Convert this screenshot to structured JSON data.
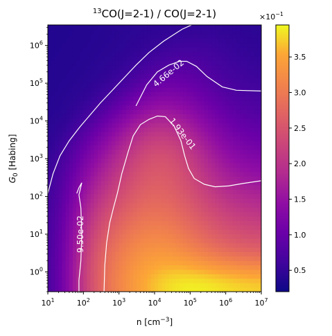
{
  "chart_data": {
    "type": "heatmap",
    "title_main": "CO(J=2-1) / CO(J=2-1)",
    "title_superscript": "13",
    "xlabel": "n [cm",
    "xlabel_exp": "−3",
    "xlabel_close": "]",
    "ylabel": "G",
    "ylabel_sub": "0",
    "ylabel_rest": " [Habing]",
    "x_scale": "log",
    "y_scale": "log",
    "xlim": [
      10,
      10000000
    ],
    "ylim": [
      0.3,
      3500000
    ],
    "x_ticks": [
      {
        "value": 10,
        "base": "10",
        "exp": "1"
      },
      {
        "value": 100,
        "base": "10",
        "exp": "2"
      },
      {
        "value": 1000,
        "base": "10",
        "exp": "3"
      },
      {
        "value": 10000,
        "base": "10",
        "exp": "4"
      },
      {
        "value": 100000,
        "base": "10",
        "exp": "5"
      },
      {
        "value": 1000000,
        "base": "10",
        "exp": "6"
      },
      {
        "value": 10000000,
        "base": "10",
        "exp": "7"
      }
    ],
    "y_ticks": [
      {
        "value": 1,
        "base": "10",
        "exp": "0"
      },
      {
        "value": 10,
        "base": "10",
        "exp": "1"
      },
      {
        "value": 100,
        "base": "10",
        "exp": "2"
      },
      {
        "value": 1000,
        "base": "10",
        "exp": "3"
      },
      {
        "value": 10000,
        "base": "10",
        "exp": "4"
      },
      {
        "value": 100000,
        "base": "10",
        "exp": "5"
      },
      {
        "value": 1000000,
        "base": "10",
        "exp": "6"
      }
    ],
    "colormap": "plasma",
    "colorbar": {
      "range": [
        0.2,
        3.95
      ],
      "ticks": [
        "0.5",
        "1.0",
        "1.5",
        "2.0",
        "2.5",
        "3.0",
        "3.5"
      ],
      "tick_values": [
        0.5,
        1.0,
        1.5,
        2.0,
        2.5,
        3.0,
        3.5
      ],
      "offset_base": "×10",
      "offset_exp": "−1"
    },
    "contours": [
      {
        "label": "4.66e-02",
        "points": [
          [
            10,
            120
          ],
          [
            14,
            400
          ],
          [
            22,
            1200
          ],
          [
            40,
            3000
          ],
          [
            80,
            7000
          ],
          [
            150,
            14000
          ],
          [
            300,
            30000
          ],
          [
            700,
            70000
          ],
          [
            1500,
            150000
          ],
          [
            3000,
            300000
          ],
          [
            7000,
            650000
          ],
          [
            18000,
            1300000
          ],
          [
            60000,
            2700000
          ],
          [
            110000,
            3500000
          ]
        ]
      },
      {
        "label": "4.66e-02",
        "points": [
          [
            3000,
            25000
          ],
          [
            6000,
            90000
          ],
          [
            12000,
            200000
          ],
          [
            25000,
            300000
          ],
          [
            50000,
            380000
          ],
          [
            80000,
            380000
          ],
          [
            150000,
            280000
          ],
          [
            300000,
            150000
          ],
          [
            800000,
            80000
          ],
          [
            2000000,
            65000
          ],
          [
            10000000,
            62000
          ]
        ]
      },
      {
        "label": "9.50e-02",
        "points": [
          [
            65,
            120
          ],
          [
            75,
            170
          ],
          [
            90,
            230
          ],
          [
            75,
            110
          ],
          [
            85,
            50
          ],
          [
            90,
            10
          ],
          [
            85,
            2
          ],
          [
            75,
            0.6
          ],
          [
            75,
            0.3
          ]
        ]
      },
      {
        "label": "1.93e-01",
        "points": [
          [
            380,
            0.3
          ],
          [
            400,
            1.5
          ],
          [
            450,
            6
          ],
          [
            550,
            20
          ],
          [
            700,
            50
          ],
          [
            900,
            120
          ],
          [
            1200,
            400
          ],
          [
            1800,
            1500
          ],
          [
            2500,
            4000
          ],
          [
            4000,
            8000
          ],
          [
            7000,
            11000
          ],
          [
            12000,
            13500
          ],
          [
            20000,
            13000
          ],
          [
            35000,
            7500
          ],
          [
            55000,
            3000
          ],
          [
            70000,
            1200
          ],
          [
            90000,
            550
          ],
          [
            130000,
            300
          ],
          [
            250000,
            210
          ],
          [
            500000,
            180
          ],
          [
            1200000,
            190
          ],
          [
            3000000,
            220
          ],
          [
            10000000,
            260
          ]
        ]
      }
    ]
  }
}
